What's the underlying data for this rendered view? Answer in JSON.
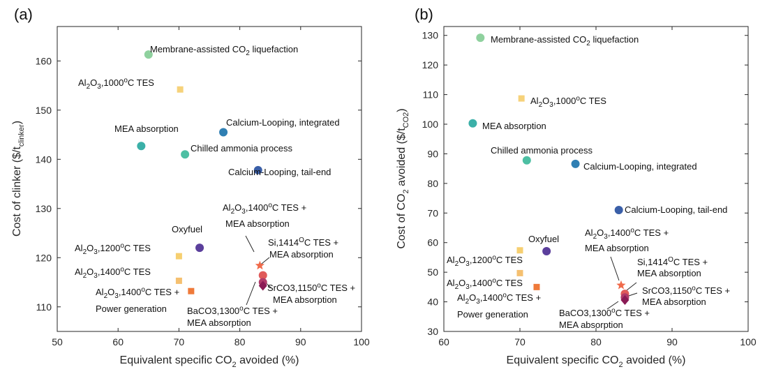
{
  "chart_data": [
    {
      "type": "scatter",
      "panel_label": "(a)",
      "xlabel": "Equivalent specific CO2 avoided (%)",
      "ylabel": "Cost of clinker ($/tclinker)",
      "xlim": [
        50,
        100
      ],
      "ylim": [
        105,
        167
      ],
      "xticks": [
        50,
        60,
        70,
        80,
        90,
        100
      ],
      "yticks": [
        110,
        120,
        130,
        140,
        150,
        160
      ],
      "grid": false,
      "points": [
        {
          "label": "Membrane-assisted CO2 liquefaction",
          "x": 65.0,
          "y": 161.3,
          "marker": "circle",
          "color": "#8fd19e"
        },
        {
          "label": "Al2O3,1000oC TES",
          "x": 70.2,
          "y": 154.2,
          "marker": "square",
          "color": "#f6d27a"
        },
        {
          "label": "Calcium-Looping, integrated",
          "x": 77.3,
          "y": 145.5,
          "marker": "circle",
          "color": "#2f7fb3"
        },
        {
          "label": "MEA absorption",
          "x": 63.8,
          "y": 142.7,
          "marker": "circle",
          "color": "#3bb0a8"
        },
        {
          "label": "Chilled ammonia process",
          "x": 71.0,
          "y": 141.0,
          "marker": "circle",
          "color": "#4dbfa3"
        },
        {
          "label": "Calcium-Looping, tail-end",
          "x": 83.0,
          "y": 137.8,
          "marker": "circle",
          "color": "#3a5fa8"
        },
        {
          "label": "Oxyfuel",
          "x": 73.4,
          "y": 122.0,
          "marker": "circle",
          "color": "#5b3f9c"
        },
        {
          "label": "Al2O3,1200oC TES",
          "x": 70.0,
          "y": 120.3,
          "marker": "square",
          "color": "#f6cf70"
        },
        {
          "label": "Al2O3,1400oC TES + MEA absorption",
          "x": 83.3,
          "y": 118.4,
          "marker": "star",
          "color": "#f06a4a"
        },
        {
          "label": "Al2O3,1400oC TES",
          "x": 70.0,
          "y": 115.3,
          "marker": "square",
          "color": "#f5c070"
        },
        {
          "label": "Si,1414oC TES + MEA absorption",
          "x": 83.8,
          "y": 116.4,
          "marker": "circle",
          "color": "#e05a5a"
        },
        {
          "label": "SrCO3,1150oC TES + MEA absorption",
          "x": 83.8,
          "y": 115.0,
          "marker": "circle",
          "color": "#b03a6a"
        },
        {
          "label": "BaCO3,1300oC TES + MEA absorption",
          "x": 83.8,
          "y": 114.3,
          "marker": "diamond",
          "color": "#8a1a55"
        },
        {
          "label": "Al2O3,1400oC TES + Power generation",
          "x": 72.0,
          "y": 113.2,
          "marker": "square",
          "color": "#ef7a3a"
        }
      ]
    },
    {
      "type": "scatter",
      "panel_label": "(b)",
      "xlabel": "Equivalent specific CO2 avoided (%)",
      "ylabel": "Cost of CO2 avoided ($/tCO2)",
      "xlim": [
        60,
        100
      ],
      "ylim": [
        30,
        133
      ],
      "xticks": [
        60,
        70,
        80,
        90,
        100
      ],
      "yticks": [
        30,
        40,
        50,
        60,
        70,
        80,
        90,
        100,
        110,
        120,
        130
      ],
      "grid": false,
      "points": [
        {
          "label": "Membrane-assisted CO2 liquefaction",
          "x": 64.8,
          "y": 129.2,
          "marker": "circle",
          "color": "#8fd19e"
        },
        {
          "label": "Al2O3,1000oC TES",
          "x": 70.2,
          "y": 108.7,
          "marker": "square",
          "color": "#f6d27a"
        },
        {
          "label": "MEA absorption",
          "x": 63.8,
          "y": 100.3,
          "marker": "circle",
          "color": "#3bb0a8"
        },
        {
          "label": "Chilled ammonia process",
          "x": 70.9,
          "y": 87.8,
          "marker": "circle",
          "color": "#4dbfa3"
        },
        {
          "label": "Calcium-Looping, integrated",
          "x": 77.3,
          "y": 86.6,
          "marker": "circle",
          "color": "#2f7fb3"
        },
        {
          "label": "Calcium-Looping, tail-end",
          "x": 83.0,
          "y": 71.0,
          "marker": "circle",
          "color": "#3a5fa8"
        },
        {
          "label": "Al2O3,1200oC TES",
          "x": 70.0,
          "y": 57.4,
          "marker": "square",
          "color": "#f6cf70"
        },
        {
          "label": "Oxyfuel",
          "x": 73.5,
          "y": 57.1,
          "marker": "circle",
          "color": "#5b3f9c"
        },
        {
          "label": "Al2O3,1400oC TES",
          "x": 70.0,
          "y": 49.7,
          "marker": "square",
          "color": "#f5c070"
        },
        {
          "label": "Al2O3,1400oC TES + MEA absorption",
          "x": 83.3,
          "y": 45.6,
          "marker": "star",
          "color": "#f06a4a"
        },
        {
          "label": "Al2O3,1400oC TES + Power generation",
          "x": 72.2,
          "y": 45.0,
          "marker": "square",
          "color": "#ef7a3a"
        },
        {
          "label": "Si,1414oC TES + MEA absorption",
          "x": 83.8,
          "y": 42.7,
          "marker": "circle",
          "color": "#e05a5a"
        },
        {
          "label": "SrCO3,1150oC TES + MEA absorption",
          "x": 83.8,
          "y": 41.5,
          "marker": "circle",
          "color": "#b03a6a"
        },
        {
          "label": "BaCO3,1300oC TES + MEA absorption",
          "x": 83.8,
          "y": 40.6,
          "marker": "diamond",
          "color": "#8a1a55"
        }
      ]
    }
  ]
}
